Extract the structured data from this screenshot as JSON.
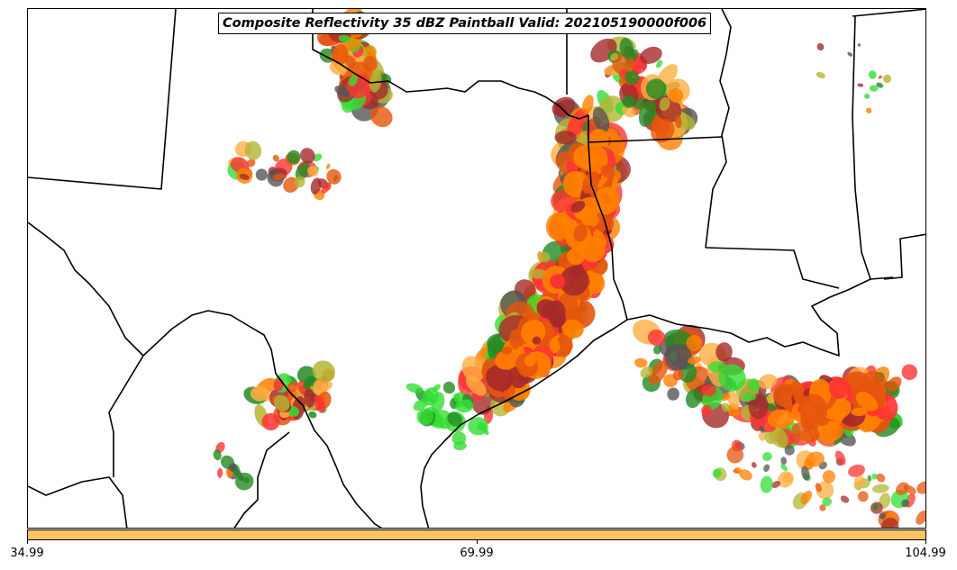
{
  "title": "Composite Reflectivity 35 dBZ Paintball Valid: 202105190000f006",
  "colorbar": {
    "color": "#ffc266",
    "ticks": [
      "34.99",
      "69.99",
      "104.99"
    ]
  },
  "ensemble_colors": [
    "#e6550d",
    "#ff7f00",
    "#ff3333",
    "#33dd33",
    "#228b22",
    "#555555",
    "#a52a2a",
    "#b5b535",
    "#ffae42"
  ],
  "map_features": [
    "state-borders",
    "coastline",
    "mexico-border"
  ]
}
